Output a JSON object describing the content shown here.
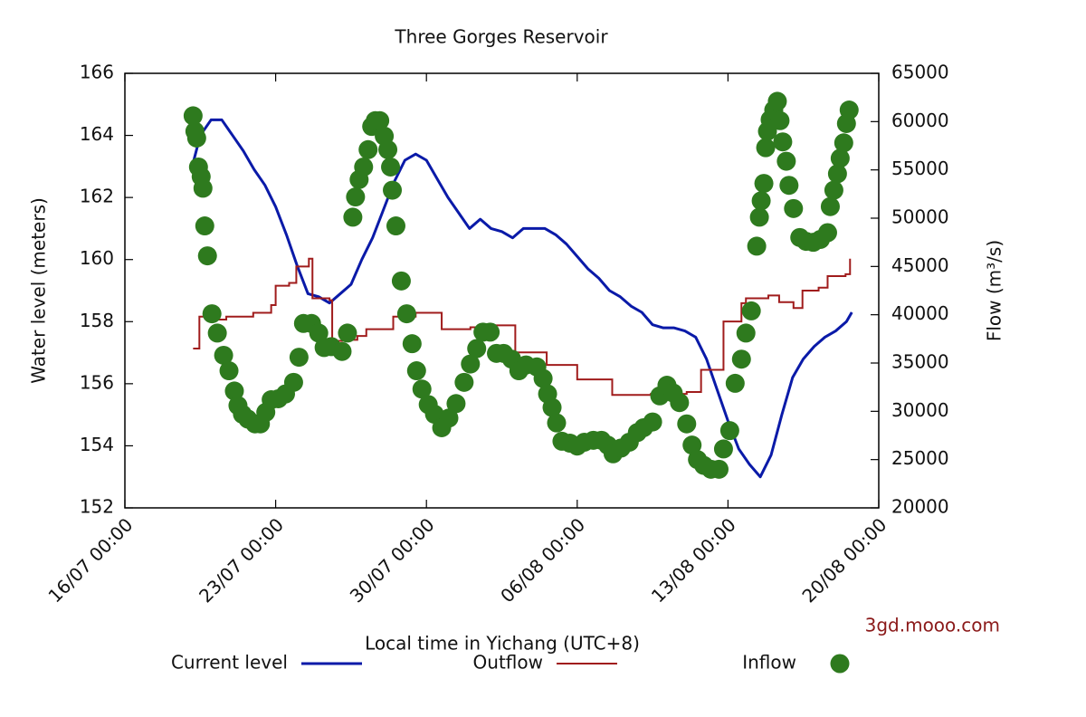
{
  "chart_data": {
    "type": "line",
    "title": "Three Gorges Reservoir",
    "x_label": "Local time in Yichang (UTC+8)",
    "y_label": "Water level (meters)",
    "y2_label": "Flow (m³/s)",
    "annotation": "3gd.mooo.com",
    "legend": "bottom",
    "xlim": [
      "16/07 00:00",
      "20/08 00:00"
    ],
    "xticks": [
      "16/07 00:00",
      "23/07 00:00",
      "30/07 00:00",
      "06/08 00:00",
      "13/08 00:00",
      "20/08 00:00"
    ],
    "ylim": [
      152,
      166
    ],
    "yticks": [
      152,
      154,
      156,
      158,
      160,
      162,
      164,
      166
    ],
    "y2lim": [
      20000,
      65000
    ],
    "y2ticks": [
      20000,
      25000,
      30000,
      35000,
      40000,
      45000,
      50000,
      55000,
      60000,
      65000
    ],
    "series": [
      {
        "name": "Current level",
        "color": "#0a1aa8",
        "style": "line",
        "axis": "y",
        "x": [
          "19/07 03:00",
          "19/07 12:00",
          "20/07 00:00",
          "20/07 12:00",
          "21/07 00:00",
          "21/07 12:00",
          "22/07 00:00",
          "22/07 12:00",
          "23/07 00:00",
          "23/07 12:00",
          "24/07 00:00",
          "24/07 12:00",
          "25/07 00:00",
          "25/07 12:00",
          "26/07 00:00",
          "26/07 12:00",
          "27/07 00:00",
          "27/07 12:00",
          "28/07 00:00",
          "28/07 12:00",
          "29/07 00:00",
          "29/07 12:00",
          "30/07 00:00",
          "30/07 12:00",
          "31/07 00:00",
          "31/07 12:00",
          "01/08 00:00",
          "01/08 12:00",
          "02/08 00:00",
          "02/08 12:00",
          "03/08 00:00",
          "03/08 12:00",
          "04/08 00:00",
          "04/08 12:00",
          "05/08 00:00",
          "05/08 12:00",
          "06/08 00:00",
          "06/08 12:00",
          "07/08 00:00",
          "07/08 12:00",
          "08/08 00:00",
          "08/08 12:00",
          "09/08 00:00",
          "09/08 12:00",
          "10/08 00:00",
          "10/08 12:00",
          "11/08 00:00",
          "11/08 12:00",
          "12/08 00:00",
          "12/08 12:00",
          "13/08 00:00",
          "13/08 12:00",
          "14/08 00:00",
          "14/08 12:00",
          "15/08 00:00",
          "15/08 12:00",
          "16/08 00:00",
          "16/08 12:00",
          "17/08 00:00",
          "17/08 12:00",
          "18/08 00:00",
          "18/08 12:00",
          "18/08 18:00"
        ],
        "values": [
          163.0,
          164.0,
          164.5,
          164.5,
          164.0,
          163.5,
          162.9,
          162.4,
          161.7,
          160.8,
          159.8,
          158.9,
          158.8,
          158.6,
          158.9,
          159.2,
          160.0,
          160.7,
          161.6,
          162.5,
          163.2,
          163.4,
          163.2,
          162.6,
          162.0,
          161.5,
          161.0,
          161.3,
          161.0,
          160.9,
          160.7,
          161.0,
          161.0,
          161.0,
          160.8,
          160.5,
          160.1,
          159.7,
          159.4,
          159.0,
          158.8,
          158.5,
          158.3,
          157.9,
          157.8,
          157.8,
          157.7,
          157.5,
          156.8,
          155.8,
          154.8,
          153.9,
          153.4,
          153.0,
          153.7,
          155.0,
          156.2,
          156.8,
          157.2,
          157.5,
          157.7,
          158.0,
          158.3
        ]
      },
      {
        "name": "Outflow",
        "color": "#a01c1c",
        "style": "steps",
        "axis": "y2",
        "x": [
          "19/07 04:00",
          "19/07 11:00",
          "20/07 02:00",
          "20/07 17:00",
          "21/07 23:00",
          "22/07 19:00",
          "23/07 00:00",
          "23/07 15:00",
          "23/07 23:00",
          "24/07 13:00",
          "24/07 17:00",
          "25/07 12:00",
          "25/07 15:00",
          "26/07 09:00",
          "26/07 19:00",
          "27/07 05:00",
          "28/07 11:00",
          "29/07 12:00",
          "30/07 17:00",
          "01/08 01:00",
          "01/08 16:00",
          "03/08 03:00",
          "04/08 14:00",
          "06/08 00:00",
          "07/08 15:00",
          "09/08 10:00",
          "11/08 02:00",
          "11/08 18:00",
          "12/08 19:00",
          "13/08 15:00",
          "13/08 20:00",
          "14/08 21:00",
          "15/08 09:00",
          "16/08 01:00",
          "16/08 11:00",
          "17/08 05:00",
          "17/08 15:00",
          "18/08 11:00",
          "18/08 16:00"
        ],
        "values": [
          36500,
          39800,
          39500,
          39800,
          40200,
          41000,
          43000,
          43300,
          45000,
          45800,
          41700,
          41500,
          37300,
          37400,
          37800,
          38500,
          39800,
          40200,
          38500,
          38700,
          38900,
          36100,
          34800,
          33300,
          31700,
          31800,
          32000,
          34300,
          39300,
          41200,
          41700,
          42000,
          41300,
          40700,
          42500,
          42800,
          44000,
          44200,
          45800
        ]
      },
      {
        "name": "Inflow",
        "color": "#2e7a1e",
        "style": "points",
        "axis": "y2",
        "x": [
          "19/07 04:00",
          "19/07 06:00",
          "19/07 08:00",
          "19/07 10:00",
          "19/07 13:00",
          "19/07 15:00",
          "19/07 17:00",
          "19/07 20:00",
          "20/07 01:00",
          "20/07 07:00",
          "20/07 14:00",
          "20/07 20:00",
          "21/07 02:00",
          "21/07 06:00",
          "21/07 11:00",
          "21/07 17:00",
          "22/07 01:00",
          "22/07 07:00",
          "22/07 13:00",
          "22/07 19:00",
          "23/07 03:00",
          "23/07 11:00",
          "23/07 20:00",
          "24/07 02:00",
          "24/07 07:00",
          "24/07 16:00",
          "25/07 00:00",
          "25/07 06:00",
          "25/07 14:00",
          "26/07 02:00",
          "26/07 08:00",
          "26/07 14:00",
          "26/07 17:00",
          "26/07 21:00",
          "27/07 02:00",
          "27/07 07:00",
          "27/07 11:00",
          "27/07 15:00",
          "27/07 20:00",
          "28/07 01:00",
          "28/07 05:00",
          "28/07 08:00",
          "28/07 10:00",
          "28/07 14:00",
          "28/07 20:00",
          "29/07 02:00",
          "29/07 08:00",
          "29/07 13:00",
          "29/07 19:00",
          "30/07 02:00",
          "30/07 09:00",
          "30/07 17:00",
          "31/07 01:00",
          "31/07 09:00",
          "31/07 18:00",
          "01/08 01:00",
          "01/08 08:00",
          "01/08 15:00",
          "01/08 23:00",
          "02/08 06:00",
          "02/08 14:00",
          "02/08 23:00",
          "03/08 07:00",
          "03/08 15:00",
          "04/08 03:00",
          "04/08 10:00",
          "04/08 15:00",
          "04/08 20:00",
          "05/08 01:00",
          "05/08 07:00",
          "05/08 16:00",
          "06/08 00:00",
          "06/08 08:00",
          "06/08 18:00",
          "07/08 03:00",
          "07/08 10:00",
          "07/08 16:00",
          "08/08 01:00",
          "08/08 10:00",
          "08/08 19:00",
          "09/08 02:00",
          "09/08 12:00",
          "09/08 20:00",
          "10/08 04:00",
          "10/08 11:00",
          "10/08 18:00",
          "11/08 02:00",
          "11/08 08:00",
          "11/08 14:00",
          "11/08 21:00",
          "12/08 05:00",
          "12/08 14:00",
          "12/08 19:00",
          "13/08 02:00",
          "13/08 08:00",
          "13/08 15:00",
          "13/08 20:00",
          "14/08 02:00",
          "14/08 08:00",
          "14/08 11:00",
          "14/08 13:00",
          "14/08 16:00",
          "14/08 18:00",
          "14/08 20:00",
          "14/08 23:00",
          "15/08 03:00",
          "15/08 07:00",
          "15/08 10:00",
          "15/08 13:00",
          "15/08 17:00",
          "15/08 20:00",
          "16/08 01:00",
          "16/08 08:00",
          "16/08 15:00",
          "16/08 23:00",
          "17/08 07:00",
          "17/08 15:00",
          "17/08 18:00",
          "17/08 22:00",
          "18/08 02:00",
          "18/08 05:00",
          "18/08 09:00",
          "18/08 12:00",
          "18/08 15:00"
        ],
        "values": [
          60600,
          59000,
          58300,
          55300,
          54300,
          53100,
          49200,
          46100,
          40100,
          38100,
          35800,
          34200,
          32100,
          30600,
          29700,
          29200,
          28700,
          28700,
          29900,
          31200,
          31300,
          31800,
          33000,
          35600,
          39100,
          39100,
          38100,
          36600,
          36700,
          36200,
          38100,
          50100,
          52200,
          54000,
          55300,
          57100,
          59500,
          60100,
          60100,
          58500,
          57100,
          55300,
          52900,
          49200,
          43500,
          40100,
          37000,
          34200,
          32300,
          30700,
          29700,
          28300,
          29300,
          30800,
          33000,
          34900,
          36500,
          38200,
          38200,
          36000,
          36000,
          35400,
          34200,
          34800,
          34600,
          33400,
          31800,
          30400,
          28800,
          26900,
          26700,
          26400,
          26800,
          27000,
          27000,
          26500,
          25600,
          26200,
          26800,
          27800,
          28300,
          28900,
          31600,
          32700,
          31900,
          30900,
          28700,
          26500,
          25000,
          24400,
          24000,
          24000,
          26100,
          28000,
          32900,
          35400,
          38100,
          40400,
          47100,
          50100,
          51800,
          53600,
          57300,
          59000,
          60200,
          61200,
          62100,
          60100,
          57900,
          55900,
          53400,
          51000,
          48000,
          47600,
          47500,
          47800,
          48500,
          51200,
          52900,
          54600,
          56200,
          57800,
          59800,
          61200
        ]
      }
    ]
  }
}
